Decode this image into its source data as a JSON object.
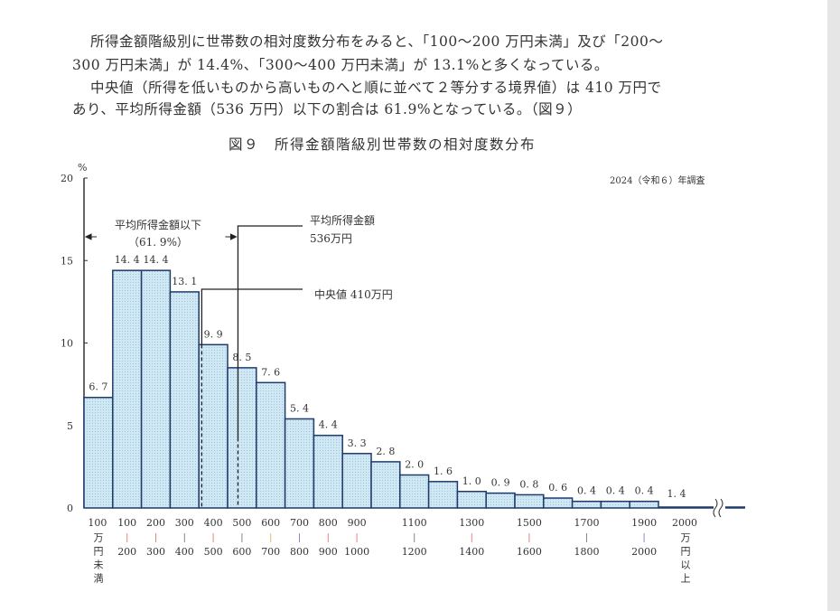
{
  "text": {
    "lines": [
      "所得金額階級別に世帯数の相対度数分布をみると、「100〜200 万円未満」及び「200〜",
      "300 万円未満」が 14.4%、「300〜400 万円未満」が 13.1%と多くなっている。",
      "中央値（所得を低いものから高いものへと順に並べて２等分する境界値）は 410 万円で",
      "あり、平均所得金額（536 万円）以下の割合は 61.9%となっている。（図９）"
    ]
  },
  "chart_data": {
    "type": "bar",
    "title": "図９　所得金額階級別世帯数の相対度数分布",
    "note": "2024（令和６）年調査",
    "ylabel": "%",
    "ylim": [
      0,
      20
    ],
    "yticks": [
      "0",
      "5",
      "10",
      "15",
      "20"
    ],
    "categories": [
      "100万円未満",
      "100-200",
      "200-300",
      "300-400",
      "400-500",
      "500-600",
      "600-700",
      "700-800",
      "800-900",
      "900-1000",
      "1000-1100",
      "1100-1200",
      "1200-1300",
      "1300-1400",
      "1400-1500",
      "1500-1600",
      "1600-1700",
      "1700-1800",
      "1800-1900",
      "1900-2000",
      "2000万円以上"
    ],
    "values": [
      6.7,
      14.4,
      14.4,
      13.1,
      9.9,
      8.5,
      7.6,
      5.4,
      4.4,
      3.3,
      2.8,
      2.0,
      1.6,
      1.0,
      0.9,
      0.8,
      0.6,
      0.4,
      0.4,
      0.4,
      1.4
    ],
    "value_labels": [
      "6. 7",
      "14. 4",
      "14. 4",
      "13. 1",
      "9. 9",
      "8. 5",
      "7. 6",
      "5. 4",
      "4. 4",
      "3. 3",
      "2. 8",
      "2. 0",
      "1. 6",
      "1. 0",
      "0. 9",
      "0. 8",
      "0. 6",
      "0. 4",
      "0. 4",
      "0. 4",
      "1. 4"
    ],
    "xlabels": [
      {
        "bar": 0,
        "top": "100",
        "bottom": "",
        "vertical": "万円未満"
      },
      {
        "bar": 1,
        "top": "100",
        "bottom": "200",
        "sep": "#f08080"
      },
      {
        "bar": 2,
        "top": "200",
        "bottom": "300",
        "sep": "#f08080"
      },
      {
        "bar": 3,
        "top": "300",
        "bottom": "400",
        "sep": "#888888"
      },
      {
        "bar": 4,
        "top": "400",
        "bottom": "500",
        "sep": "#f08080"
      },
      {
        "bar": 5,
        "top": "500",
        "bottom": "600",
        "sep": "#888888"
      },
      {
        "bar": 6,
        "top": "600",
        "bottom": "700",
        "sep": "#e8c060"
      },
      {
        "bar": 7,
        "top": "700",
        "bottom": "800",
        "sep": "#8888dd"
      },
      {
        "bar": 8,
        "top": "800",
        "bottom": "900",
        "sep": "#f08080"
      },
      {
        "bar": 9,
        "top": "900",
        "bottom": "1000",
        "sep": "#f08080"
      },
      {
        "bar": 11,
        "top": "1100",
        "bottom": "1200",
        "sep": "#888888"
      },
      {
        "bar": 13,
        "top": "1300",
        "bottom": "1400",
        "sep": "#f08080"
      },
      {
        "bar": 15,
        "top": "1500",
        "bottom": "1600",
        "sep": "#f08080"
      },
      {
        "bar": 17,
        "top": "1700",
        "bottom": "1800",
        "sep": "#888888"
      },
      {
        "bar": 19,
        "top": "1900",
        "bottom": "2000",
        "sep": "#8888dd"
      },
      {
        "bar": 20,
        "top": "2000",
        "bottom": "",
        "vertical": "万円以上"
      }
    ],
    "annotations": {
      "below_mean_label": "平均所得金額以下",
      "below_mean_pct": "（61. 9%）",
      "mean_label": "平均所得金額",
      "mean_value": "536万円",
      "mean": 536,
      "median_label": "中央値  410万円",
      "median": 410
    },
    "colors": {
      "bar_fill": "#cfe8f3",
      "bar_stroke": "#1f3a6b",
      "axis": "#333333"
    }
  }
}
